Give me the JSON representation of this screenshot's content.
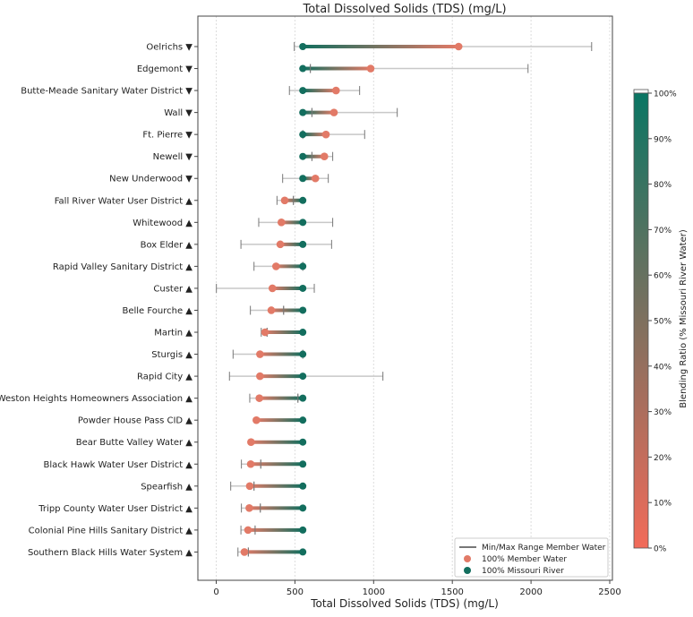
{
  "chart_data": {
    "type": "dumbbell",
    "title": "Total Dissolved Solids (TDS) (mg/L)",
    "xlabel": "Total Dissolved Solids (TDS) (mg/L)",
    "xlim": [
      -110,
      2520
    ],
    "xticks": [
      0,
      500,
      1000,
      1500,
      2000,
      2500
    ],
    "grid": "vertical dashed",
    "missouri_river_value": 550,
    "categories": [
      {
        "label": "Oelrichs ▼",
        "member": 1540,
        "min": 496,
        "max": 2385
      },
      {
        "label": "Edgemont ▼",
        "member": 981,
        "min": 598,
        "max": 1981
      },
      {
        "label": "Butte-Meade Sanitary Water District ▼",
        "member": 761,
        "min": 465,
        "max": 911
      },
      {
        "label": "Wall ▼",
        "member": 748,
        "min": 608,
        "max": 1150
      },
      {
        "label": "Ft. Pierre ▼",
        "member": 697,
        "min": 550,
        "max": 943
      },
      {
        "label": "Newell ▼",
        "member": 687,
        "min": 608,
        "max": 740
      },
      {
        "label": "New Underwood ▼",
        "member": 630,
        "min": 422,
        "max": 712
      },
      {
        "label": "Fall River Water User District ▲",
        "member": 435,
        "min": 386,
        "max": 490
      },
      {
        "label": "Whitewood ▲",
        "member": 414,
        "min": 270,
        "max": 740
      },
      {
        "label": "Box Elder ▲",
        "member": 407,
        "min": 157,
        "max": 733
      },
      {
        "label": "Rapid Valley Sanitary District ▲",
        "member": 380,
        "min": 240,
        "max": 550
      },
      {
        "label": "Custer ▲",
        "member": 357,
        "min": 1,
        "max": 623
      },
      {
        "label": "Belle Fourche ▲",
        "member": 350,
        "min": 217,
        "max": 428
      },
      {
        "label": "Martin ▲",
        "member": 310,
        "min": 286,
        "max": 323
      },
      {
        "label": "Sturgis ▲",
        "member": 278,
        "min": 107,
        "max": 550
      },
      {
        "label": "Rapid City ▲",
        "member": 278,
        "min": 84,
        "max": 1059
      },
      {
        "label": "Weston Heights Homeowners Association ▲",
        "member": 274,
        "min": 213,
        "max": 519
      },
      {
        "label": "Powder House Pass CID ▲",
        "member": 255,
        "min": null,
        "max": null
      },
      {
        "label": "Bear Butte Valley Water ▲",
        "member": 221,
        "min": null,
        "max": null
      },
      {
        "label": "Black Hawk Water User District ▲",
        "member": 219,
        "min": 160,
        "max": 283
      },
      {
        "label": "Spearfish ▲",
        "member": 213,
        "min": 92,
        "max": 240
      },
      {
        "label": "Tripp County Water User District ▲",
        "member": 210,
        "min": 160,
        "max": 280
      },
      {
        "label": "Colonial Pine Hills Sanitary District ▲",
        "member": 202,
        "min": 157,
        "max": 247
      },
      {
        "label": "Southern Black Hills Water System ▲",
        "member": 179,
        "min": 138,
        "max": 204
      }
    ],
    "legend": {
      "placement": "bottom-right",
      "entries": [
        "Min/Max Range Member Water",
        "100% Member Water",
        "100% Missouri River"
      ]
    },
    "colorbar": {
      "label": "Blending Ratio (% Missouri River Water)",
      "ticks": [
        "0%",
        "10%",
        "20%",
        "30%",
        "40%",
        "50%",
        "60%",
        "70%",
        "80%",
        "90%",
        "100%"
      ],
      "color_low": "#f26b5a",
      "color_high": "#0a7563"
    },
    "colors": {
      "member": "#e27a67",
      "missouri": "#136e5e",
      "range": "#c8c8c8",
      "cap": "#777777"
    }
  }
}
